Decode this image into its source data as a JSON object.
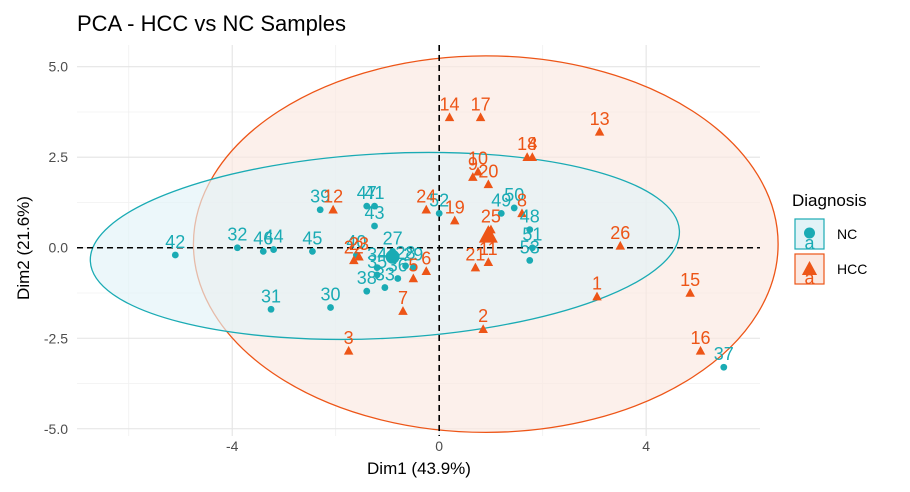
{
  "chart_data": {
    "type": "scatter",
    "title": "PCA - HCC vs NC Samples",
    "xlabel": "Dim1 (43.9%)",
    "ylabel": "Dim2 (21.6%)",
    "xlim": [
      -7.0,
      6.2
    ],
    "ylim": [
      -5.2,
      5.6
    ],
    "x_ticks": [
      -4,
      0,
      4
    ],
    "y_ticks": [
      -5.0,
      -2.5,
      0.0,
      2.5,
      5.0
    ],
    "x_tick_labels": [
      "-4",
      "0",
      "4"
    ],
    "y_tick_labels": [
      "-5.0",
      "-2.5",
      "0.0",
      "2.5",
      "5.0"
    ],
    "x_minor_ticks": [
      -6,
      -2,
      2
    ],
    "y_minor_ticks": [
      -3.75,
      -1.25,
      1.25,
      3.75
    ],
    "grid": true,
    "reference_lines": {
      "x": 0,
      "y": 0,
      "style": "dashed"
    },
    "legend": {
      "title": "Diagnosis",
      "position": "right",
      "entries": [
        "NC",
        "HCC"
      ],
      "glyph_letter": "a"
    },
    "series": [
      {
        "name": "NC",
        "color": "#1aabb4",
        "ellipse_fill": "#e2f3f7",
        "marker": "circle",
        "centroid": [
          -0.9,
          -0.25
        ],
        "ellipse": {
          "cx": -1.05,
          "cy": 0.05,
          "rx": 5.7,
          "ry": 2.55,
          "angle_deg": -3
        },
        "points": [
          {
            "label": "42",
            "x": -5.1,
            "y": -0.2
          },
          {
            "label": "32",
            "x": -3.9,
            "y": 0.0
          },
          {
            "label": "46",
            "x": -3.4,
            "y": -0.1
          },
          {
            "label": "44",
            "x": -3.2,
            "y": -0.05
          },
          {
            "label": "45",
            "x": -2.45,
            "y": -0.1
          },
          {
            "label": "31",
            "x": -3.25,
            "y": -1.7
          },
          {
            "label": "30",
            "x": -2.1,
            "y": -1.65
          },
          {
            "label": "39",
            "x": -2.3,
            "y": 1.05
          },
          {
            "label": "47",
            "x": -1.4,
            "y": 1.15
          },
          {
            "label": "41",
            "x": -1.25,
            "y": 1.15
          },
          {
            "label": "43",
            "x": -1.25,
            "y": 0.6
          },
          {
            "label": "40",
            "x": -1.6,
            "y": -0.2
          },
          {
            "label": "27",
            "x": -0.9,
            "y": -0.1
          },
          {
            "label": "34",
            "x": -1.2,
            "y": -0.55
          },
          {
            "label": "35",
            "x": -1.2,
            "y": -0.75
          },
          {
            "label": "36",
            "x": -0.8,
            "y": -0.85
          },
          {
            "label": "33",
            "x": -1.05,
            "y": -1.1
          },
          {
            "label": "38",
            "x": -1.4,
            "y": -1.2
          },
          {
            "label": "28",
            "x": -0.65,
            "y": -0.5
          },
          {
            "label": "29",
            "x": -0.5,
            "y": -0.55
          },
          {
            "label": "52",
            "x": 0.0,
            "y": 0.95
          },
          {
            "label": "49",
            "x": 1.2,
            "y": 0.95
          },
          {
            "label": "50",
            "x": 1.45,
            "y": 1.1
          },
          {
            "label": "48",
            "x": 1.75,
            "y": 0.5
          },
          {
            "label": "51",
            "x": 1.8,
            "y": 0.0
          },
          {
            "label": "53",
            "x": 1.75,
            "y": -0.35
          },
          {
            "label": "37",
            "x": 5.5,
            "y": -3.3
          }
        ]
      },
      {
        "name": "HCC",
        "color": "#ed5517",
        "ellipse_fill": "#fbe8e1",
        "marker": "triangle",
        "centroid": [
          0.95,
          0.35
        ],
        "ellipse": {
          "cx": 0.9,
          "cy": 0.1,
          "rx": 5.65,
          "ry": 5.2,
          "angle_deg": 0
        },
        "points": [
          {
            "label": "14",
            "x": 0.2,
            "y": 3.6
          },
          {
            "label": "17",
            "x": 0.8,
            "y": 3.6
          },
          {
            "label": "13",
            "x": 3.1,
            "y": 3.2
          },
          {
            "label": "4",
            "x": 1.8,
            "y": 2.5
          },
          {
            "label": "18",
            "x": 1.7,
            "y": 2.5
          },
          {
            "label": "10",
            "x": 0.75,
            "y": 2.1
          },
          {
            "label": "9",
            "x": 0.65,
            "y": 1.95
          },
          {
            "label": "20",
            "x": 0.95,
            "y": 1.75
          },
          {
            "label": "12",
            "x": -2.05,
            "y": 1.05
          },
          {
            "label": "24",
            "x": -0.25,
            "y": 1.05
          },
          {
            "label": "19",
            "x": 0.3,
            "y": 0.75
          },
          {
            "label": "8",
            "x": 1.6,
            "y": 0.95
          },
          {
            "label": "25",
            "x": 1.0,
            "y": 0.5
          },
          {
            "label": "23",
            "x": -1.55,
            "y": -0.25
          },
          {
            "label": "22",
            "x": -1.65,
            "y": -0.35
          },
          {
            "label": "26",
            "x": 3.5,
            "y": 0.05
          },
          {
            "label": "11",
            "x": 0.95,
            "y": -0.4
          },
          {
            "label": "21",
            "x": 0.7,
            "y": -0.55
          },
          {
            "label": "5",
            "x": -0.5,
            "y": -0.85
          },
          {
            "label": "6",
            "x": -0.25,
            "y": -0.65
          },
          {
            "label": "1",
            "x": 3.05,
            "y": -1.35
          },
          {
            "label": "15",
            "x": 4.85,
            "y": -1.25
          },
          {
            "label": "2",
            "x": 0.85,
            "y": -2.25
          },
          {
            "label": "3",
            "x": -1.75,
            "y": -2.85
          },
          {
            "label": "16",
            "x": 5.05,
            "y": -2.85
          },
          {
            "label": "7",
            "x": -0.7,
            "y": -1.75
          }
        ]
      }
    ]
  }
}
